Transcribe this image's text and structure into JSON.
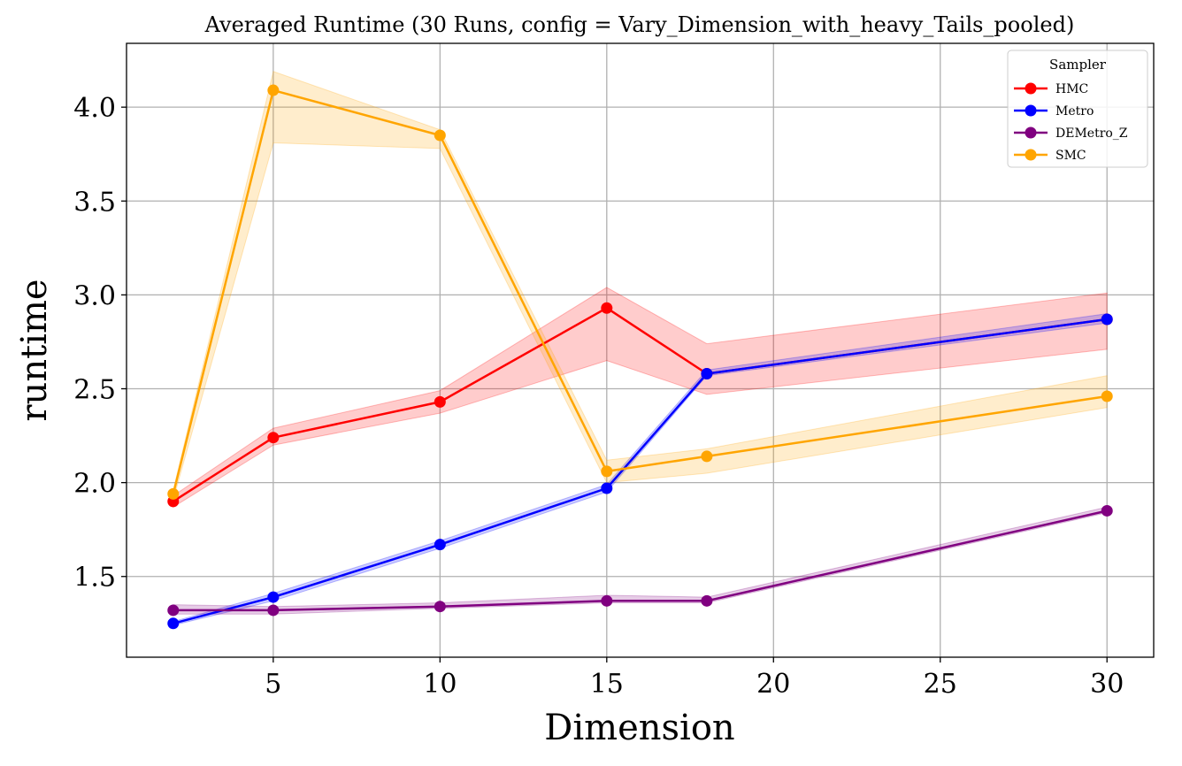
{
  "chart_data": {
    "type": "line",
    "title": "Averaged Runtime (30 Runs, config = Vary_Dimension_with_heavy_Tails_pooled)",
    "xlabel": "Dimension",
    "ylabel": "runtime",
    "xlim": [
      0.6,
      31.4
    ],
    "ylim": [
      1.07,
      4.34
    ],
    "xticks": [
      5,
      10,
      15,
      20,
      25,
      30
    ],
    "yticks": [
      1.5,
      2.0,
      2.5,
      3.0,
      3.5,
      4.0
    ],
    "xtick_labels": [
      "5",
      "10",
      "15",
      "20",
      "25",
      "30"
    ],
    "ytick_labels": [
      "1.5",
      "2.0",
      "2.5",
      "3.0",
      "3.5",
      "4.0"
    ],
    "grid": true,
    "legend": {
      "title": "Sampler",
      "position": "top-right"
    },
    "x": [
      2,
      5,
      10,
      15,
      18,
      30
    ],
    "series": [
      {
        "name": "HMC",
        "color": "#ff0000",
        "values": [
          1.9,
          2.24,
          2.43,
          2.93,
          2.58,
          2.87
        ],
        "lower": [
          1.87,
          2.2,
          2.37,
          2.65,
          2.47,
          2.71
        ],
        "upper": [
          1.93,
          2.29,
          2.49,
          3.04,
          2.74,
          3.01
        ]
      },
      {
        "name": "Metro",
        "color": "#0000ff",
        "values": [
          1.25,
          1.39,
          1.67,
          1.97,
          2.58,
          2.87
        ],
        "lower": [
          1.24,
          1.37,
          1.65,
          1.95,
          2.57,
          2.85
        ],
        "upper": [
          1.26,
          1.41,
          1.69,
          1.99,
          2.6,
          2.9
        ]
      },
      {
        "name": "DEMetro_Z",
        "color": "#800080",
        "values": [
          1.32,
          1.32,
          1.34,
          1.37,
          1.37,
          1.85
        ],
        "lower": [
          1.3,
          1.3,
          1.33,
          1.36,
          1.36,
          1.84
        ],
        "upper": [
          1.35,
          1.34,
          1.36,
          1.4,
          1.39,
          1.87
        ]
      },
      {
        "name": "SMC",
        "color": "#ffa500",
        "values": [
          1.94,
          4.09,
          3.85,
          2.06,
          2.14,
          2.46
        ],
        "lower": [
          1.91,
          3.81,
          3.78,
          2.0,
          2.05,
          2.4
        ],
        "upper": [
          1.96,
          4.19,
          3.88,
          2.12,
          2.18,
          2.57
        ]
      }
    ]
  }
}
